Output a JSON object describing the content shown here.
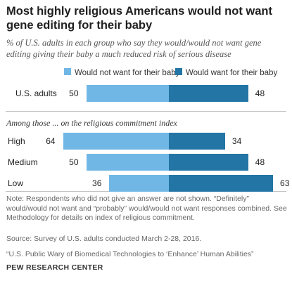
{
  "title": "Most highly religious Americans would not want gene editing for their baby",
  "subtitle": "% of U.S. adults in each group who say they would/would not want gene editing giving their baby a much reduced risk of serious disease",
  "section_heading": "Among those ... on the religious commitment index",
  "note": "Note: Respondents who did not give an answer are not shown. “Definitely” would/would not want and “probably” would/would not want responses combined. See Methodology for details on index of religious commitment.",
  "source": "Source: Survey of U.S. adults conducted March 2-28, 2016.",
  "report": "“U.S. Public Wary of Biomedical Technologies to ‘Enhance’ Human Abilities”",
  "org": "PEW RESEARCH CENTER",
  "colors": {
    "would_not": "#71b7e6",
    "would": "#2275a4"
  },
  "chart_data": {
    "type": "bar",
    "orientation": "horizontal",
    "stacked": "diverging",
    "categories": [
      "U.S. adults",
      "High",
      "Medium",
      "Low"
    ],
    "series": [
      {
        "name": "Would not want for their baby",
        "values": [
          50,
          64,
          50,
          36
        ]
      },
      {
        "name": "Would want for their baby",
        "values": [
          48,
          34,
          48,
          63
        ]
      }
    ]
  }
}
